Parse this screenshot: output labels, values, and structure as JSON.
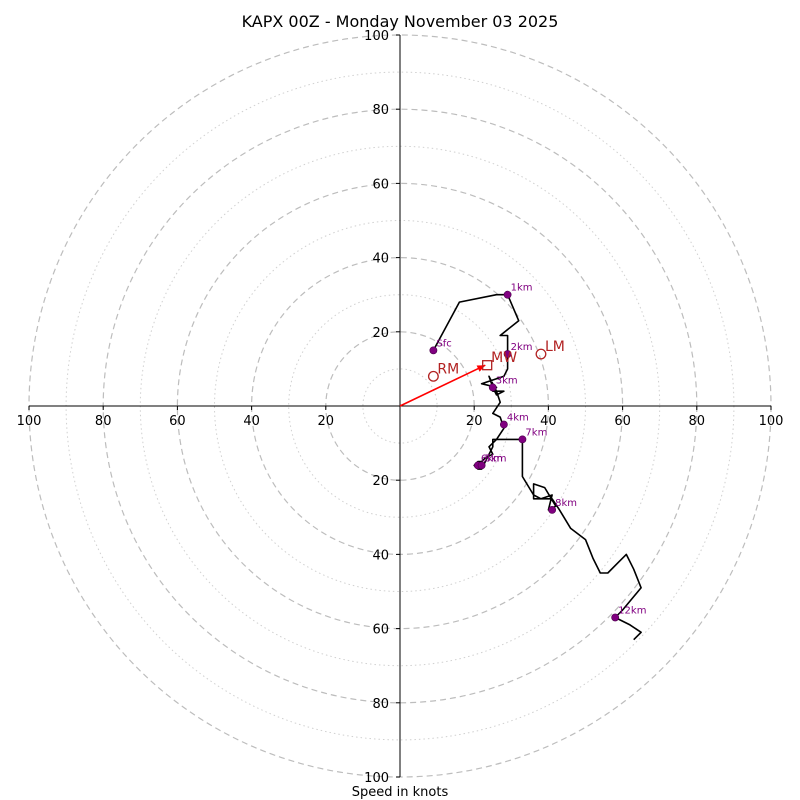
{
  "chart_data": {
    "type": "hodograph",
    "title": "KAPX 00Z - Monday November 03 2025",
    "xlabel": "Speed in knots",
    "units": "knots",
    "axis_range": [
      -100,
      100
    ],
    "major_rings": [
      20,
      40,
      60,
      80,
      100
    ],
    "minor_rings": [
      10,
      30,
      50,
      70,
      90
    ],
    "x_tick_labels": [
      "100",
      "80",
      "60",
      "40",
      "20",
      "20",
      "40",
      "60",
      "80",
      "100"
    ],
    "y_tick_labels": [
      "100",
      "80",
      "60",
      "40",
      "20",
      "20",
      "40",
      "60",
      "80",
      "100"
    ],
    "trace": [
      [
        9,
        15
      ],
      [
        16,
        28
      ],
      [
        26,
        30
      ],
      [
        29,
        30
      ],
      [
        32,
        23
      ],
      [
        27,
        19
      ],
      [
        29,
        19
      ],
      [
        29,
        14
      ],
      [
        29,
        10
      ],
      [
        28,
        8
      ],
      [
        25,
        7
      ],
      [
        22,
        6
      ],
      [
        26,
        5
      ],
      [
        25,
        4
      ],
      [
        28,
        4
      ],
      [
        26,
        3
      ],
      [
        25,
        5
      ],
      [
        24,
        8
      ],
      [
        26,
        4
      ],
      [
        27,
        1
      ],
      [
        25,
        -2
      ],
      [
        27,
        -3
      ],
      [
        28,
        -6
      ],
      [
        26,
        -9
      ],
      [
        25,
        -10
      ],
      [
        24,
        -11
      ],
      [
        25,
        -13
      ],
      [
        23,
        -14
      ],
      [
        22,
        -15
      ],
      [
        21,
        -15
      ],
      [
        20,
        -16
      ],
      [
        21,
        -17
      ],
      [
        22,
        -17
      ],
      [
        23,
        -15
      ],
      [
        25,
        -11
      ],
      [
        25,
        -9
      ],
      [
        27,
        -9
      ],
      [
        29,
        -9
      ],
      [
        31,
        -9
      ],
      [
        33,
        -9
      ],
      [
        33,
        -14
      ],
      [
        33,
        -19
      ],
      [
        36,
        -24
      ],
      [
        38,
        -25
      ],
      [
        41,
        -24
      ],
      [
        40,
        -28
      ],
      [
        42,
        -27
      ],
      [
        39,
        -22
      ],
      [
        36,
        -21
      ],
      [
        36,
        -25
      ],
      [
        41,
        -25
      ],
      [
        43,
        -28
      ],
      [
        46,
        -33
      ],
      [
        50,
        -36
      ],
      [
        52,
        -41
      ],
      [
        54,
        -45
      ],
      [
        56,
        -45
      ],
      [
        59,
        -42
      ],
      [
        61,
        -40
      ],
      [
        63,
        -44
      ],
      [
        65,
        -49
      ],
      [
        60,
        -55
      ],
      [
        58,
        -57
      ],
      [
        62,
        -59
      ],
      [
        65,
        -61
      ],
      [
        63,
        -63
      ]
    ],
    "height_points": [
      {
        "label": "Sfc",
        "u": 9,
        "v": 15
      },
      {
        "label": "1km",
        "u": 29,
        "v": 30
      },
      {
        "label": "2km",
        "u": 29,
        "v": 14
      },
      {
        "label": "3km",
        "u": 25,
        "v": 5
      },
      {
        "label": "4km",
        "u": 28,
        "v": -5
      },
      {
        "label": "6km",
        "u": 21,
        "v": -16
      },
      {
        "label": "5km",
        "u": 22,
        "v": -16
      },
      {
        "label": "7km",
        "u": 33,
        "v": -9
      },
      {
        "label": "8km",
        "u": 41,
        "v": -28
      },
      {
        "label": "12km",
        "u": 58,
        "v": -57
      }
    ],
    "motion_markers": [
      {
        "label": "RM",
        "u": 9,
        "v": 8,
        "shape": "circle"
      },
      {
        "label": "LM",
        "u": 38,
        "v": 14,
        "shape": "circle"
      },
      {
        "label": "MW",
        "u": 23.5,
        "v": 11,
        "shape": "square"
      }
    ],
    "storm_vector": {
      "from": [
        0,
        0
      ],
      "to": [
        23,
        11
      ]
    }
  },
  "colors": {
    "trace": "#000000",
    "height_points": "#800080",
    "motion": "#b22222",
    "vector": "#ff0000",
    "rings": "#bdbdbd"
  }
}
